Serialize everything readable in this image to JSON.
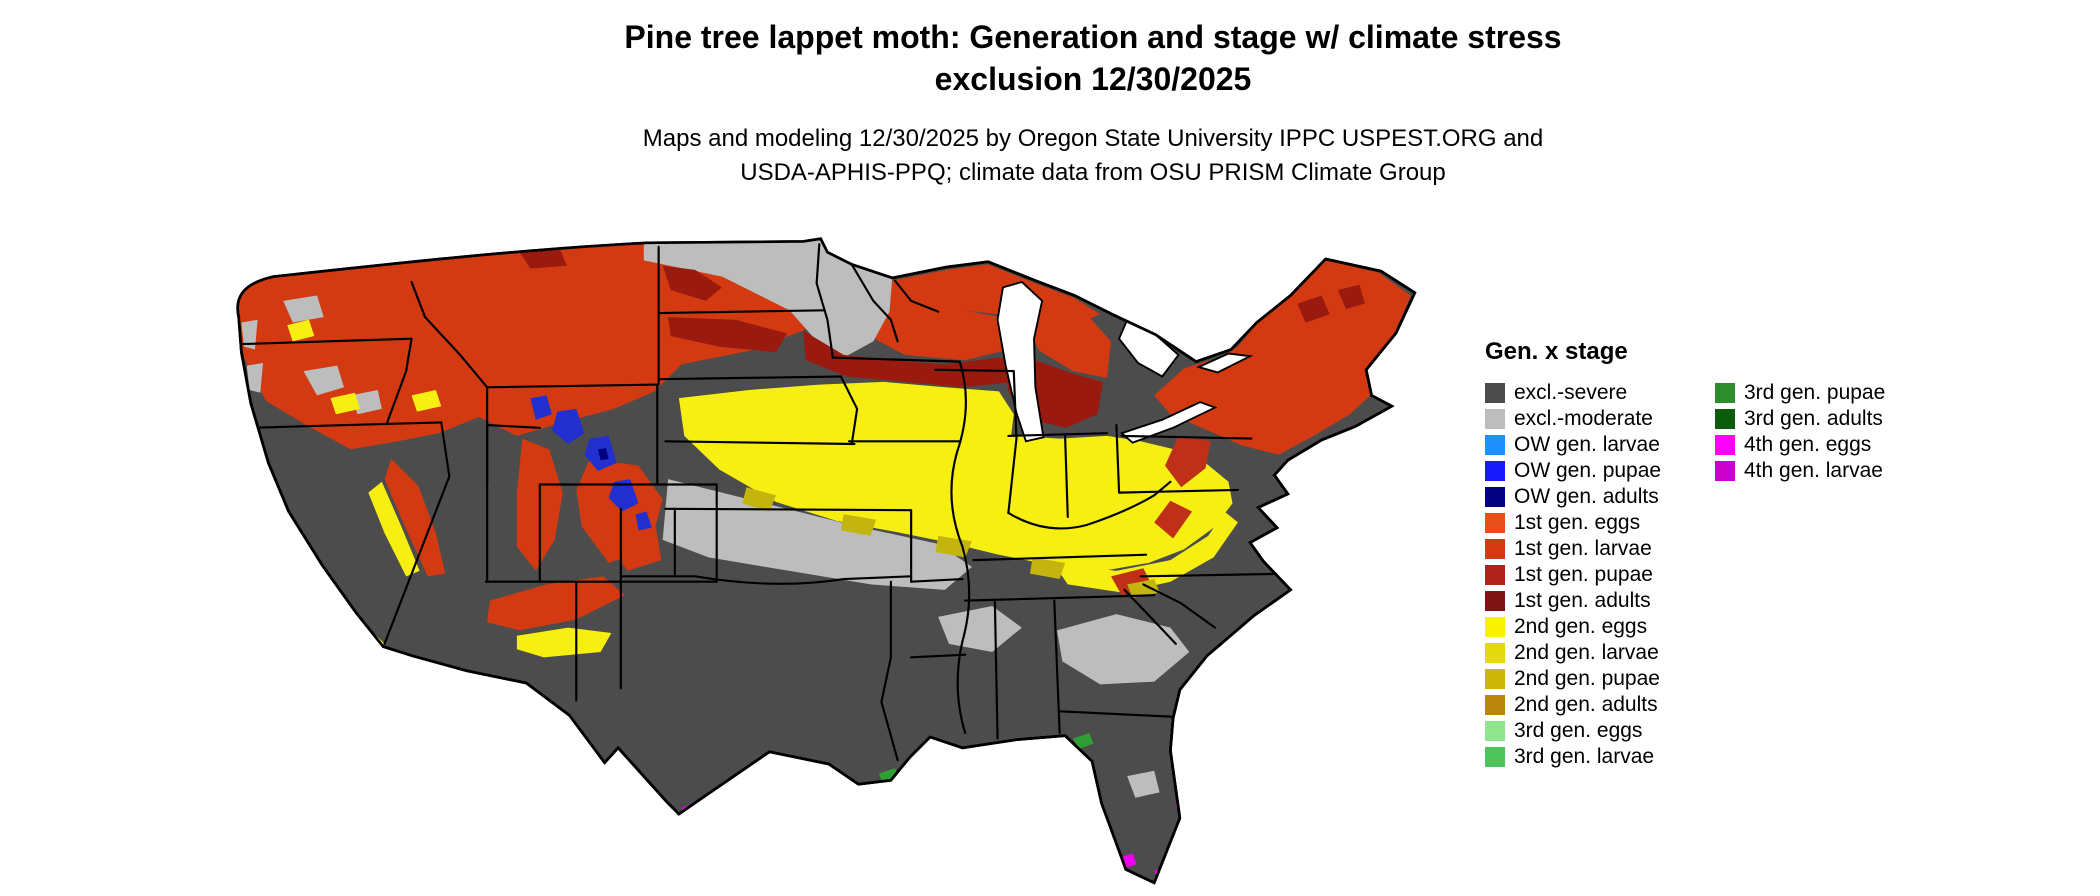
{
  "header": {
    "title_line1": "Pine tree lappet moth: Generation and stage w/ climate stress",
    "title_line2": "exclusion 12/30/2025",
    "subtitle_line1": "Maps and modeling 12/30/2025 by Oregon State University IPPC USPEST.ORG and",
    "subtitle_line2": "USDA-APHIS-PPQ; climate data from OSU PRISM Climate Group"
  },
  "map": {
    "region": "Continental United States"
  },
  "legend": {
    "title": "Gen. x stage",
    "columns": [
      [
        {
          "label": "excl.-severe",
          "color": "#4c4c4c"
        },
        {
          "label": "excl.-moderate",
          "color": "#bdbdbd"
        },
        {
          "label": "OW gen. larvae",
          "color": "#1e90ff"
        },
        {
          "label": "OW gen. pupae",
          "color": "#1a1aff"
        },
        {
          "label": "OW gen. adults",
          "color": "#000080"
        },
        {
          "label": "1st gen. eggs",
          "color": "#e84e1a"
        },
        {
          "label": "1st gen. larvae",
          "color": "#d63a14"
        },
        {
          "label": "1st gen. pupae",
          "color": "#b0221a"
        },
        {
          "label": "1st gen. adults",
          "color": "#801313"
        },
        {
          "label": "2nd gen. eggs",
          "color": "#f8f200"
        },
        {
          "label": "2nd gen. larvae",
          "color": "#e3d90d"
        },
        {
          "label": "2nd gen. pupae",
          "color": "#cdb80a"
        },
        {
          "label": "2nd gen. adults",
          "color": "#b8860b"
        },
        {
          "label": "3rd gen. eggs",
          "color": "#8fe68f"
        },
        {
          "label": "3rd gen. larvae",
          "color": "#4dc45d"
        }
      ],
      [
        {
          "label": "3rd gen. pupae",
          "color": "#2e8b2e"
        },
        {
          "label": "3rd gen. adults",
          "color": "#0c5c0c"
        },
        {
          "label": "4th gen. eggs",
          "color": "#ff00ff"
        },
        {
          "label": "4th gen. larvae",
          "color": "#cc00cc"
        }
      ]
    ]
  }
}
